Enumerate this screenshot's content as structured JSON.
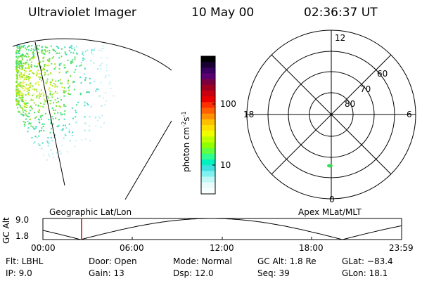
{
  "header": {
    "title": "Ultraviolet Imager",
    "date": "10 May 00",
    "time": "02:36:37 UT"
  },
  "colorbar": {
    "unit_prefix": "photon cm",
    "unit_exp1": "-2",
    "unit_mid": "s",
    "unit_exp2": "-1",
    "ticks": [
      "100",
      "10"
    ],
    "colors": [
      "#000000",
      "#1a0030",
      "#3a0060",
      "#5a0070",
      "#7a0040",
      "#a00020",
      "#c80010",
      "#e80000",
      "#ff3000",
      "#ff6000",
      "#ff9000",
      "#ffc000",
      "#ffe000",
      "#f0ff00",
      "#c0ff00",
      "#90ff00",
      "#60ff40",
      "#30ff90",
      "#00f0c0",
      "#40e0e0",
      "#80f0f0",
      "#c0f8f8",
      "#e8fcfc",
      "#f8ffff"
    ]
  },
  "polar": {
    "labels_top": "12",
    "labels_left": "18",
    "labels_right": "6",
    "labels_bottom": "0",
    "ring_labels": [
      "60",
      "70",
      "80"
    ]
  },
  "orbit": {
    "title_left": "Geographic Lat/Lon",
    "title_right": "Apex MLat/MLT",
    "ylabel": "GC Alt",
    "yticks": [
      "9.0",
      "1.8"
    ],
    "xticks": [
      "00:00",
      "06:00",
      "12:00",
      "18:00",
      "23:59"
    ]
  },
  "footer": {
    "flt": "Flt: LBHL",
    "ip": "IP:  9.0",
    "door": "Door: Open",
    "gain": "Gain: 13",
    "mode": "Mode: Normal",
    "dsp": "Dsp:    12.0",
    "gcalt": "GC Alt: 1.8 Re",
    "seq": "Seq: 39",
    "glat": "GLat: −83.4",
    "glon": "GLon:  18.1"
  }
}
